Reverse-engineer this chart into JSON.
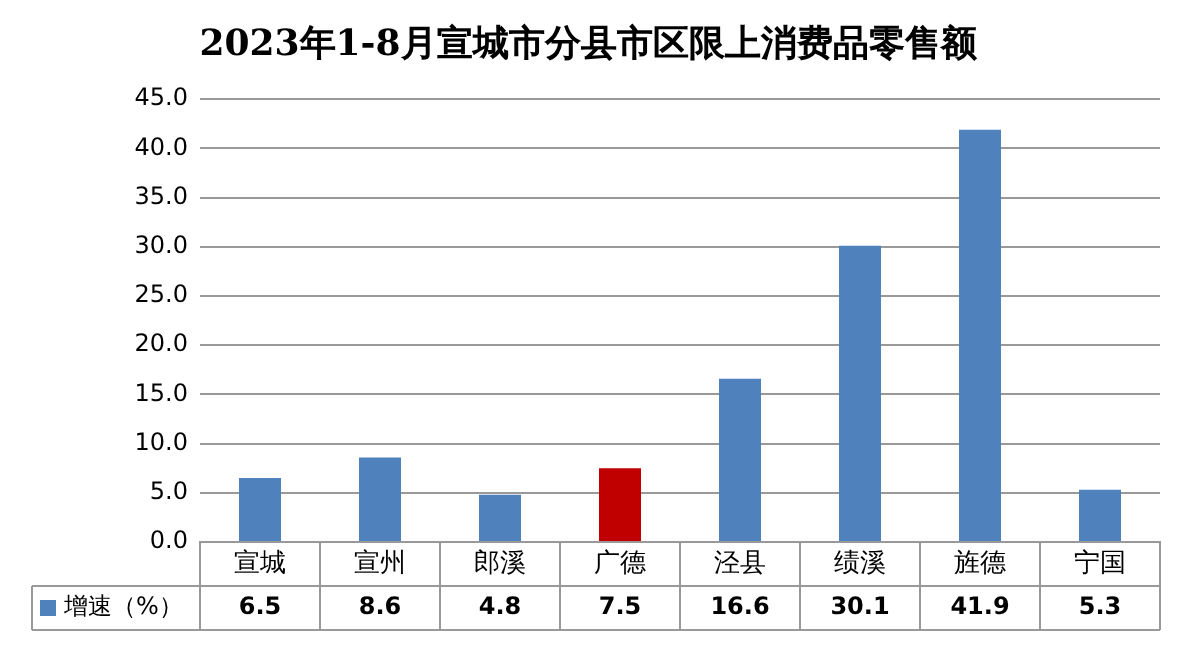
{
  "chart_data": {
    "type": "bar",
    "title": "2023年1-8月宣城市分县市区限上消费品零售额",
    "categories": [
      "宣城",
      "宣州",
      "郎溪",
      "广德",
      "泾县",
      "绩溪",
      "旌德",
      "宁国"
    ],
    "series": [
      {
        "name": "增速（%）",
        "color": "#4f81bd",
        "colors": [
          "#4f81bd",
          "#4f81bd",
          "#4f81bd",
          "#c00000",
          "#4f81bd",
          "#4f81bd",
          "#4f81bd",
          "#4f81bd"
        ],
        "values": [
          6.5,
          8.6,
          4.8,
          7.5,
          16.6,
          30.1,
          41.9,
          5.3
        ]
      }
    ],
    "ylim": [
      0,
      45
    ],
    "yticks": [
      {
        "value": 0,
        "label": "0.0"
      },
      {
        "value": 5,
        "label": "5.0"
      },
      {
        "value": 10,
        "label": "10.0"
      },
      {
        "value": 15,
        "label": "15.0"
      },
      {
        "value": 20,
        "label": "20.0"
      },
      {
        "value": 25,
        "label": "25.0"
      },
      {
        "value": 30,
        "label": "30.0"
      },
      {
        "value": 35,
        "label": "35.0"
      },
      {
        "value": 40,
        "label": "40.0"
      },
      {
        "value": 45,
        "label": "45.0"
      }
    ],
    "grid": "y",
    "legend": "bottom",
    "data_labels": true
  }
}
